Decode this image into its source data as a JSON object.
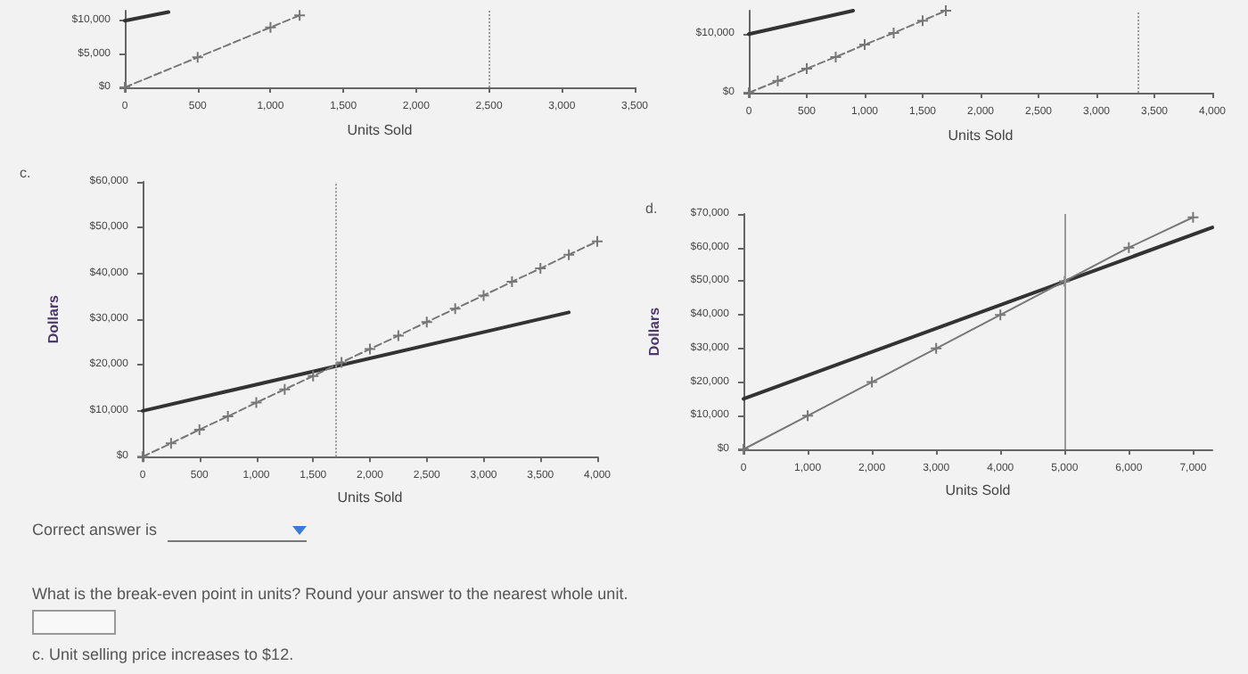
{
  "chart_data": [
    {
      "type": "line",
      "xlabel": "Units Sold",
      "xlim": [
        0,
        3500
      ],
      "ylim": [
        0,
        11500
      ],
      "xticks": [
        {
          "value": 0,
          "label": "0"
        },
        {
          "value": 500,
          "label": "500"
        },
        {
          "value": 1000,
          "label": "1,000"
        },
        {
          "value": 1500,
          "label": "1,500"
        },
        {
          "value": 2000,
          "label": "2,000"
        },
        {
          "value": 2500,
          "label": "2,500"
        },
        {
          "value": 3000,
          "label": "3,000"
        },
        {
          "value": 3500,
          "label": "3,500"
        }
      ],
      "yticks": [
        {
          "value": 0,
          "label": "$0"
        },
        {
          "value": 5000,
          "label": "$5,000"
        },
        {
          "value": 10000,
          "label": "$10,000"
        }
      ],
      "grid": false,
      "series": [
        {
          "color": "#333333",
          "line_style": "solid",
          "marker": "none",
          "x": [
            0,
            300
          ],
          "values": [
            10000,
            11300
          ]
        },
        {
          "color": "#777777",
          "line_style": "dashed",
          "marker": "cross",
          "x": [
            0,
            500,
            1000,
            1200
          ],
          "values": [
            0,
            4500,
            9000,
            10800
          ]
        }
      ],
      "ref_lines": [
        {
          "axis": "x",
          "value": 2500,
          "line_style": "dotted",
          "color": "#999999"
        }
      ]
    },
    {
      "type": "line",
      "xlabel": "Units Sold",
      "xlim": [
        0,
        4000
      ],
      "ylim": [
        0,
        14000
      ],
      "xticks": [
        {
          "value": 0,
          "label": "0"
        },
        {
          "value": 500,
          "label": "500"
        },
        {
          "value": 1000,
          "label": "1,000"
        },
        {
          "value": 1500,
          "label": "1,500"
        },
        {
          "value": 2000,
          "label": "2,000"
        },
        {
          "value": 2500,
          "label": "2,500"
        },
        {
          "value": 3000,
          "label": "3,000"
        },
        {
          "value": 3500,
          "label": "3,500"
        },
        {
          "value": 4000,
          "label": "4,000"
        }
      ],
      "yticks": [
        {
          "value": 0,
          "label": "$0"
        },
        {
          "value": 10000,
          "label": "$10,000"
        }
      ],
      "grid": false,
      "series": [
        {
          "color": "#333333",
          "line_style": "solid",
          "marker": "none",
          "x": [
            0,
            900
          ],
          "values": [
            10000,
            14000
          ]
        },
        {
          "color": "#777777",
          "line_style": "dashed",
          "marker": "cross",
          "x": [
            0,
            250,
            500,
            750,
            1000,
            1250,
            1500,
            1700
          ],
          "values": [
            0,
            2000,
            4100,
            6100,
            8200,
            10200,
            12300,
            14000
          ]
        }
      ],
      "ref_lines": [
        {
          "axis": "x",
          "value": 3350,
          "line_style": "dotted",
          "color": "#999999"
        }
      ]
    },
    {
      "type": "line",
      "title": "c.",
      "xlabel": "Units Sold",
      "ylabel": "Dollars",
      "xlim": [
        0,
        4000
      ],
      "ylim": [
        0,
        60000
      ],
      "xticks": [
        {
          "value": 0,
          "label": "0"
        },
        {
          "value": 500,
          "label": "500"
        },
        {
          "value": 1000,
          "label": "1,000"
        },
        {
          "value": 1500,
          "label": "1,500"
        },
        {
          "value": 2000,
          "label": "2,000"
        },
        {
          "value": 2500,
          "label": "2,500"
        },
        {
          "value": 3000,
          "label": "3,000"
        },
        {
          "value": 3500,
          "label": "3,500"
        },
        {
          "value": 4000,
          "label": "4,000"
        }
      ],
      "yticks": [
        {
          "value": 0,
          "label": "$0"
        },
        {
          "value": 10000,
          "label": "$10,000"
        },
        {
          "value": 20000,
          "label": "$20,000"
        },
        {
          "value": 30000,
          "label": "$30,000"
        },
        {
          "value": 40000,
          "label": "$40,000"
        },
        {
          "value": 50000,
          "label": "$50,000"
        },
        {
          "value": 60000,
          "label": "$60,000"
        }
      ],
      "grid": false,
      "series": [
        {
          "color": "#333333",
          "line_style": "solid",
          "marker": "none",
          "x": [
            0,
            3750
          ],
          "values": [
            10000,
            31500
          ]
        },
        {
          "color": "#777777",
          "line_style": "dashed",
          "marker": "cross",
          "x": [
            0,
            250,
            500,
            750,
            1000,
            1250,
            1500,
            1750,
            2000,
            2250,
            2500,
            2750,
            3000,
            3250,
            3500,
            3750,
            4000
          ],
          "values": [
            0,
            2900,
            5900,
            8800,
            11800,
            14700,
            17600,
            20600,
            23500,
            26400,
            29400,
            32300,
            35200,
            38200,
            41100,
            44100,
            47000
          ]
        }
      ],
      "ref_lines": [
        {
          "axis": "x",
          "value": 1700,
          "line_style": "dotted",
          "color": "#999999"
        }
      ],
      "annotations": [
        "Correct answer is",
        "What is the break-even point in units? Round your answer to the nearest whole unit.",
        "c. Unit selling price increases to $12."
      ]
    },
    {
      "type": "line",
      "title": "d.",
      "xlabel": "Units Sold",
      "ylabel": "Dollars",
      "xlim": [
        0,
        7300
      ],
      "ylim": [
        0,
        70000
      ],
      "xticks": [
        {
          "value": 0,
          "label": "0"
        },
        {
          "value": 1000,
          "label": "1,000"
        },
        {
          "value": 2000,
          "label": "2,000"
        },
        {
          "value": 3000,
          "label": "3,000"
        },
        {
          "value": 4000,
          "label": "4,000"
        },
        {
          "value": 5000,
          "label": "5,000"
        },
        {
          "value": 6000,
          "label": "6,000"
        },
        {
          "value": 7000,
          "label": "7,000"
        }
      ],
      "yticks": [
        {
          "value": 0,
          "label": "$0"
        },
        {
          "value": 10000,
          "label": "$10,000"
        },
        {
          "value": 20000,
          "label": "$20,000"
        },
        {
          "value": 30000,
          "label": "$30,000"
        },
        {
          "value": 40000,
          "label": "$40,000"
        },
        {
          "value": 50000,
          "label": "$50,000"
        },
        {
          "value": 60000,
          "label": "$60,000"
        },
        {
          "value": 70000,
          "label": "$70,000"
        }
      ],
      "grid": false,
      "series": [
        {
          "color": "#333333",
          "line_style": "solid",
          "marker": "none",
          "x": [
            0,
            7300
          ],
          "values": [
            15000,
            66000
          ]
        },
        {
          "color": "#777777",
          "line_style": "solid",
          "marker": "cross",
          "x": [
            0,
            1000,
            2000,
            3000,
            4000,
            5000,
            6000,
            7000
          ],
          "values": [
            0,
            10000,
            20000,
            30000,
            40000,
            50000,
            60000,
            69000
          ]
        }
      ],
      "ref_lines": [
        {
          "axis": "x",
          "value": 5000,
          "line_style": "solid",
          "color": "#999999"
        }
      ]
    }
  ]
}
